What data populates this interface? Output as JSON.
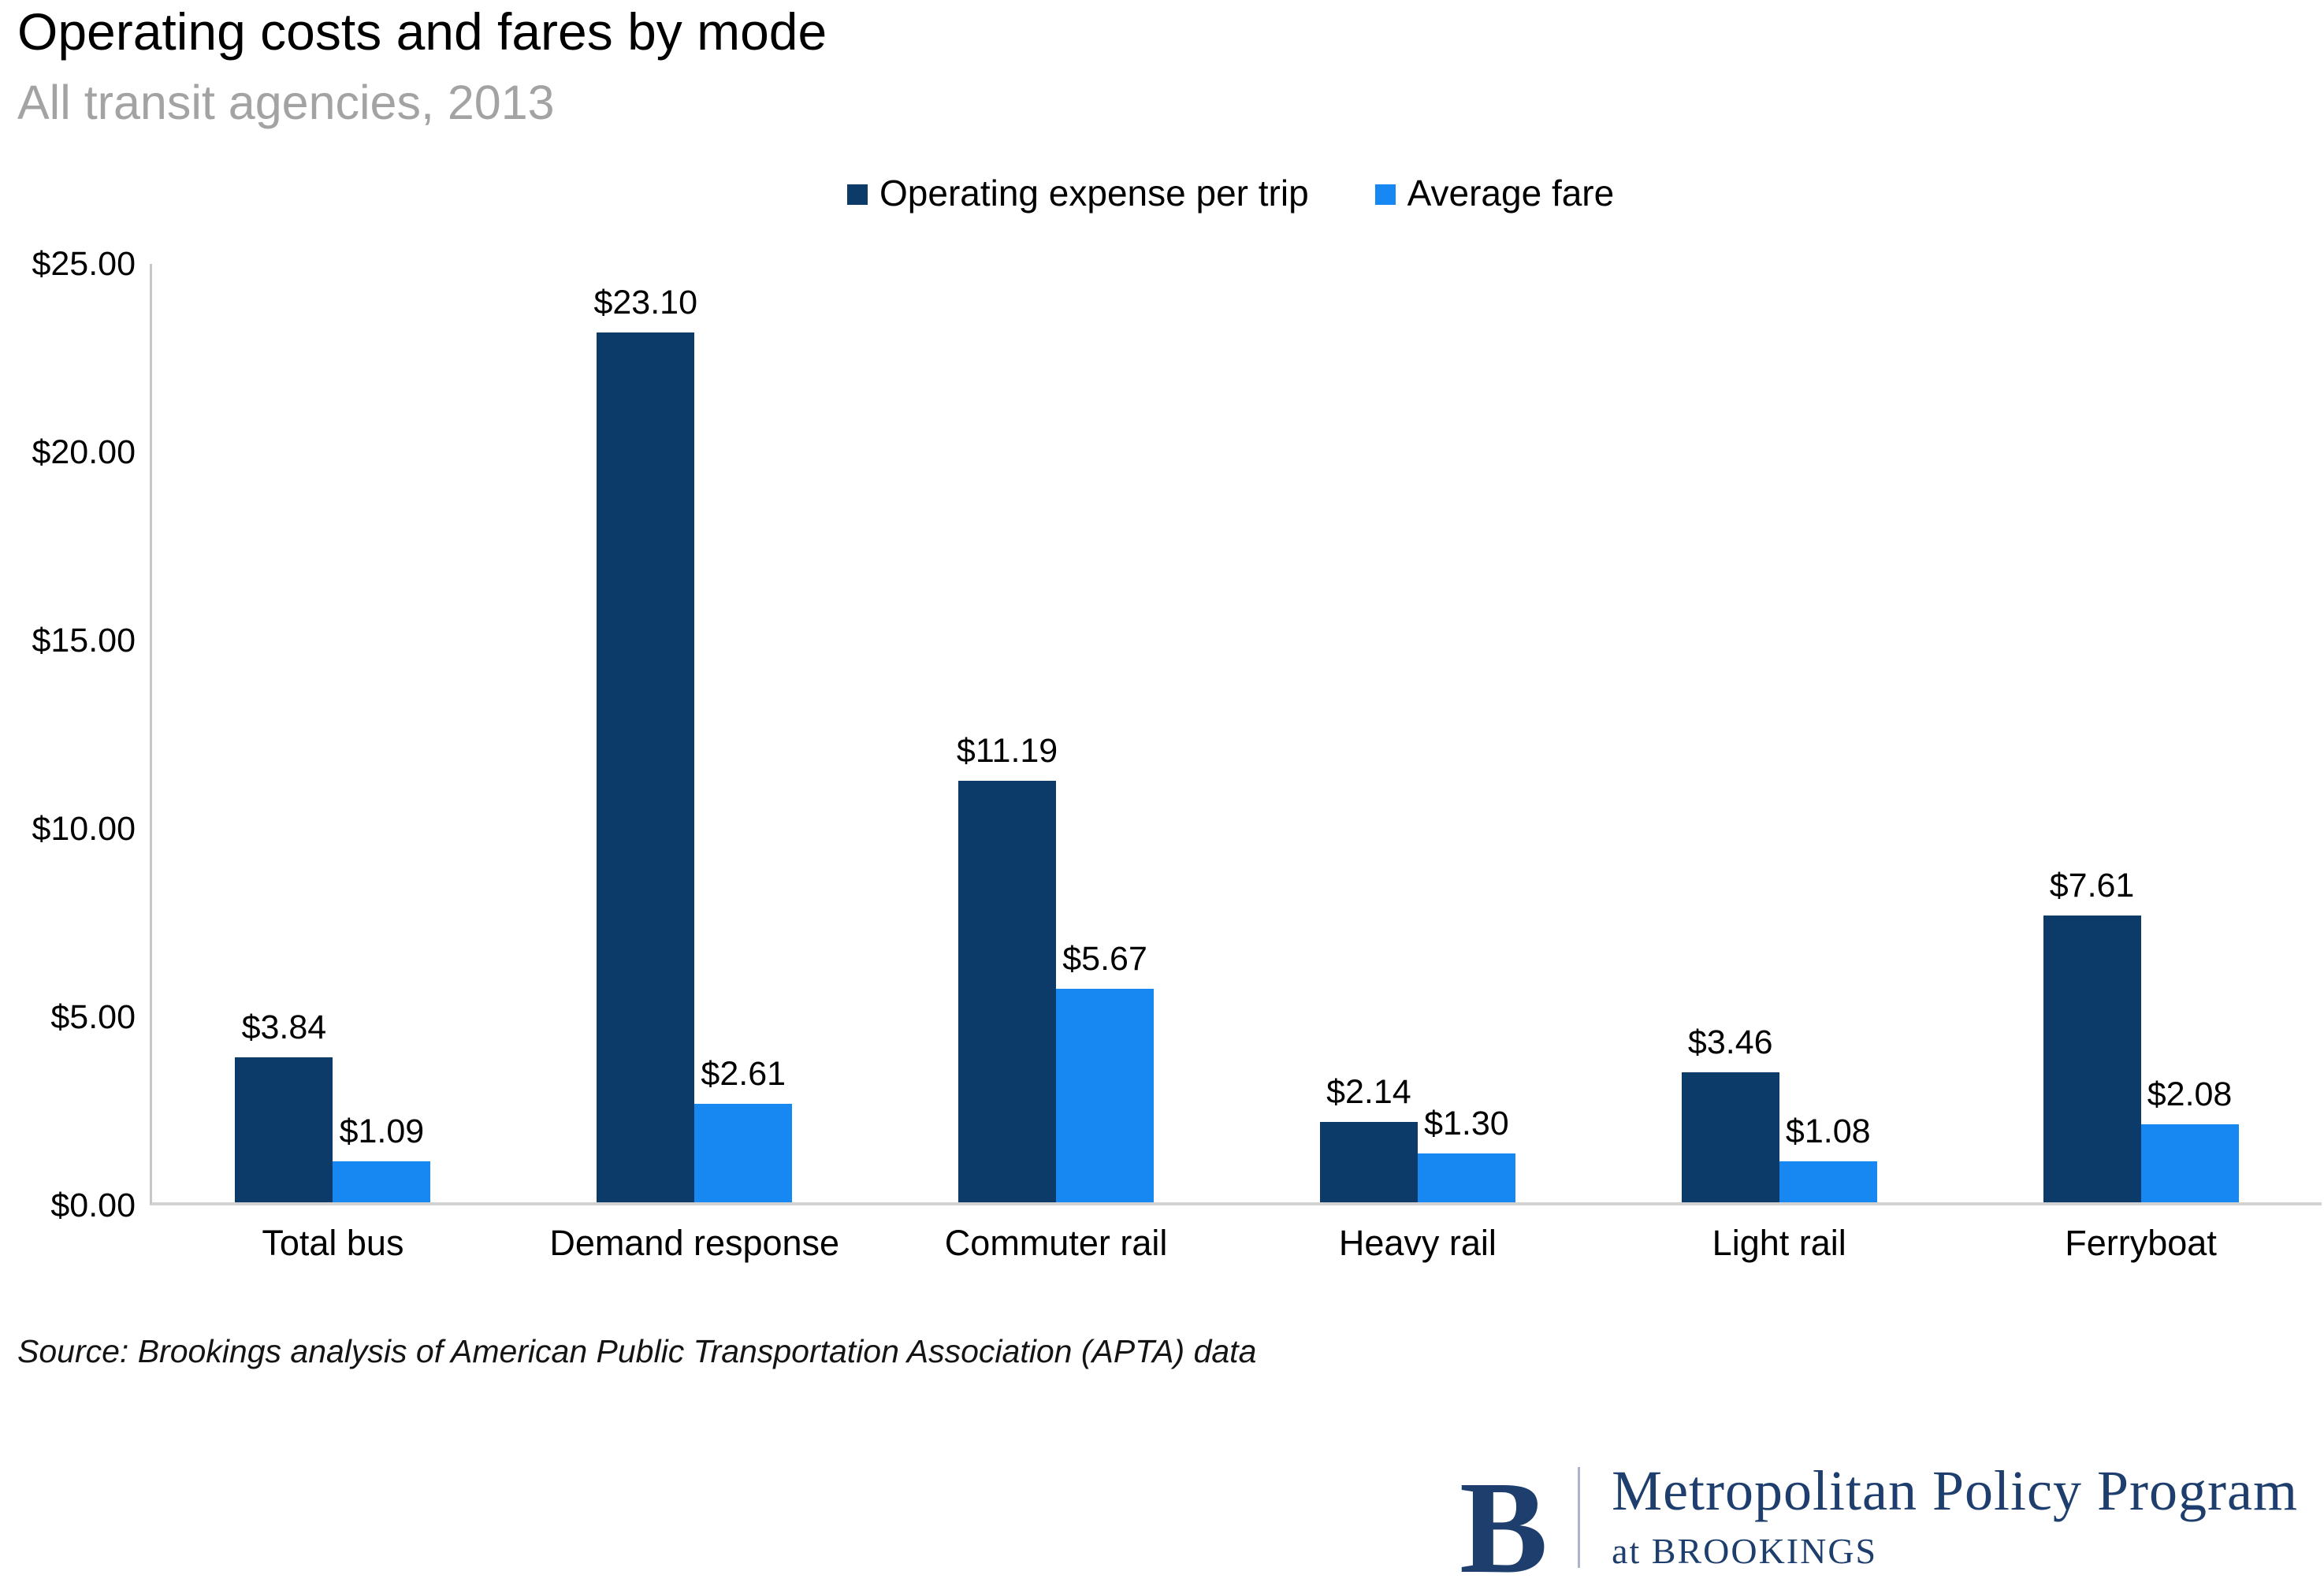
{
  "title": "Operating costs and fares by mode",
  "subtitle": "All transit agencies, 2013",
  "source_note": "Source: Brookings analysis of American Public Transportation Association (APTA) data",
  "logo": {
    "letter": "B",
    "program": "Metropolitan Policy Program",
    "at_line": "at BROOKINGS",
    "navy": "#1e3e6d"
  },
  "colors": {
    "operating_expense": "#0c3a69",
    "average_fare": "#1787f1",
    "axis_line": "#c6c6c6",
    "baseline": "#d2d2d2",
    "subtitle_gray": "#a3a3a3"
  },
  "chart_data": {
    "type": "bar",
    "title": "Operating costs and fares by mode",
    "subtitle": "All transit agencies, 2013",
    "categories": [
      "Total bus",
      "Demand response",
      "Commuter rail",
      "Heavy rail",
      "Light rail",
      "Ferryboat"
    ],
    "series": [
      {
        "name": "Operating expense per trip",
        "color": "#0c3a69",
        "values": [
          3.84,
          23.1,
          11.19,
          2.14,
          3.46,
          7.61
        ],
        "labels": [
          "$3.84",
          "$23.10",
          "$11.19",
          "$2.14",
          "$3.46",
          "$7.61"
        ]
      },
      {
        "name": "Average fare",
        "color": "#1787f1",
        "values": [
          1.09,
          2.61,
          5.67,
          1.3,
          1.08,
          2.08
        ],
        "labels": [
          "$1.09",
          "$2.61",
          "$5.67",
          "$1.30",
          "$1.08",
          "$2.08"
        ]
      }
    ],
    "xlabel": "",
    "ylabel": "",
    "ylim": [
      0,
      25
    ],
    "ytick_step": 5,
    "ytick_labels": [
      "$0.00",
      "$5.00",
      "$10.00",
      "$15.00",
      "$20.00",
      "$25.00"
    ],
    "grid": "off",
    "legend_position": "top-center"
  }
}
